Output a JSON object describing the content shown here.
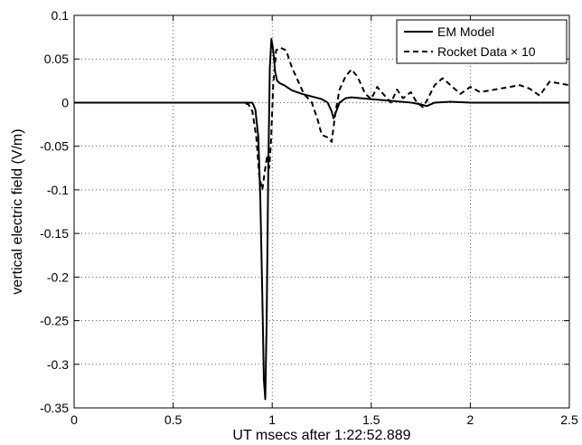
{
  "chart_data": {
    "type": "line",
    "title": "",
    "xlabel": "UT msecs after 1:22:52.889",
    "ylabel": "vertical electric field (V/m)",
    "xlim": [
      0,
      2.5
    ],
    "ylim": [
      -0.35,
      0.1
    ],
    "grid": true,
    "legend_position": "top-right",
    "x_ticks": [
      0,
      0.5,
      1,
      1.5,
      2,
      2.5
    ],
    "x_tick_labels": [
      "0",
      "0.5",
      "1",
      "1.5",
      "2",
      "2.5"
    ],
    "y_ticks": [
      -0.35,
      -0.3,
      -0.25,
      -0.2,
      -0.15,
      -0.1,
      -0.05,
      0,
      0.05,
      0.1
    ],
    "y_tick_labels": [
      "-0.35",
      "-0.3",
      "-0.25",
      "-0.2",
      "-0.15",
      "-0.1",
      "-0.05",
      "0",
      "0.05",
      "0.1"
    ],
    "series": [
      {
        "name": "EM Model",
        "style": "solid",
        "color": "#000000",
        "x": [
          0,
          0.85,
          0.9,
          0.915,
          0.93,
          0.94,
          0.95,
          0.958,
          0.965,
          0.972,
          0.98,
          0.988,
          0.996,
          1.005,
          1.015,
          1.025,
          1.04,
          1.06,
          1.1,
          1.15,
          1.2,
          1.25,
          1.28,
          1.3,
          1.31,
          1.32,
          1.34,
          1.37,
          1.4,
          1.5,
          1.6,
          1.7,
          1.75,
          1.78,
          1.82,
          1.9,
          2.0,
          2.5
        ],
        "y": [
          0,
          0,
          0.0,
          -0.008,
          -0.04,
          -0.11,
          -0.22,
          -0.318,
          -0.34,
          -0.25,
          -0.08,
          0.04,
          0.073,
          0.06,
          0.035,
          0.025,
          0.022,
          0.02,
          0.014,
          0.01,
          0.007,
          0.004,
          0.0,
          -0.01,
          -0.018,
          -0.012,
          0.0,
          0.005,
          0.006,
          0.004,
          0.002,
          0.0,
          -0.002,
          -0.004,
          0.0,
          0.001,
          0.0,
          0.0
        ]
      },
      {
        "name": "Rocket Data × 10",
        "style": "dashed",
        "color": "#000000",
        "x": [
          0,
          0.85,
          0.88,
          0.9,
          0.92,
          0.935,
          0.95,
          0.965,
          0.975,
          0.985,
          0.995,
          1.005,
          1.02,
          1.04,
          1.07,
          1.1,
          1.13,
          1.16,
          1.2,
          1.23,
          1.25,
          1.28,
          1.3,
          1.32,
          1.34,
          1.37,
          1.4,
          1.43,
          1.47,
          1.5,
          1.53,
          1.56,
          1.6,
          1.63,
          1.66,
          1.7,
          1.73,
          1.76,
          1.78,
          1.82,
          1.86,
          1.9,
          1.95,
          2.0,
          2.05,
          2.1,
          2.15,
          2.2,
          2.25,
          2.3,
          2.35,
          2.4,
          2.45,
          2.5
        ],
        "y": [
          0,
          0,
          -0.002,
          -0.01,
          -0.04,
          -0.085,
          -0.1,
          -0.075,
          -0.06,
          -0.075,
          -0.04,
          0.02,
          0.06,
          0.063,
          0.06,
          0.04,
          0.025,
          0.01,
          0.0,
          -0.02,
          -0.037,
          -0.04,
          -0.045,
          -0.01,
          0.015,
          0.03,
          0.038,
          0.03,
          0.01,
          0.004,
          0.018,
          0.01,
          0.0,
          0.015,
          0.005,
          0.012,
          0.0,
          -0.005,
          0.002,
          0.02,
          0.028,
          0.02,
          0.01,
          0.018,
          0.012,
          0.014,
          0.016,
          0.018,
          0.02,
          0.016,
          0.008,
          0.024,
          0.022,
          0.02
        ]
      }
    ]
  }
}
